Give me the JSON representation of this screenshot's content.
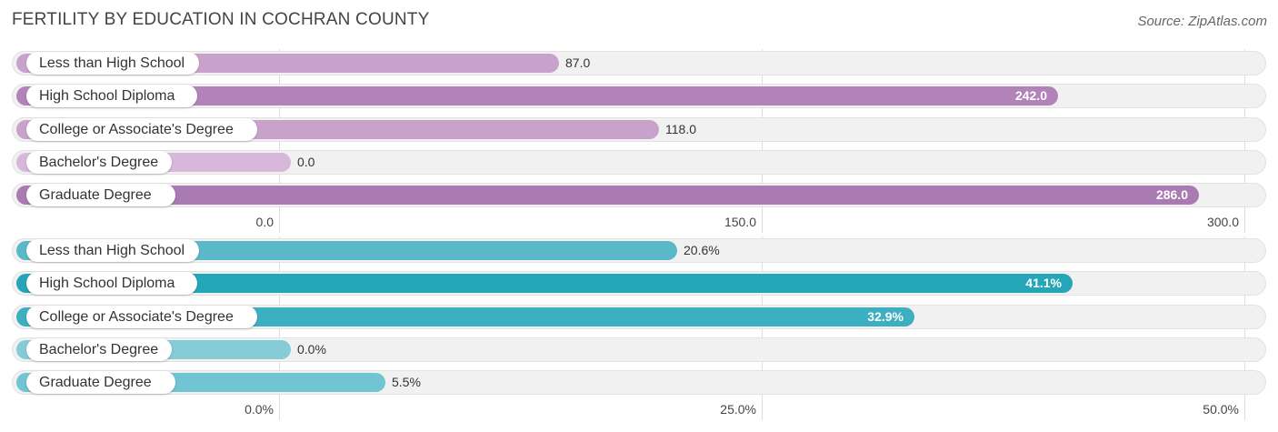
{
  "header": {
    "title": "FERTILITY BY EDUCATION IN COCHRAN COUNTY",
    "source": "Source: ZipAtlas.com"
  },
  "chart_data": [
    {
      "type": "bar",
      "orientation": "horizontal",
      "categories": [
        "Less than High School",
        "High School Diploma",
        "College or Associate's Degree",
        "Bachelor's Degree",
        "Graduate Degree"
      ],
      "values": [
        87.0,
        242.0,
        118.0,
        0.0,
        286.0
      ],
      "value_labels": [
        "87.0",
        "242.0",
        "118.0",
        "0.0",
        "286.0"
      ],
      "xlim": [
        0,
        300
      ],
      "ticks": [
        0,
        150,
        300
      ],
      "tick_labels": [
        "0.0",
        "150.0",
        "300.0"
      ],
      "colors": [
        "#c9a2cc",
        "#b283b9",
        "#c9a2cc",
        "#d7b8da",
        "#aa7bb2"
      ],
      "grid": true
    },
    {
      "type": "bar",
      "orientation": "horizontal",
      "categories": [
        "Less than High School",
        "High School Diploma",
        "College or Associate's Degree",
        "Bachelor's Degree",
        "Graduate Degree"
      ],
      "values": [
        20.6,
        41.1,
        32.9,
        0.0,
        5.5
      ],
      "value_labels": [
        "20.6%",
        "41.1%",
        "32.9%",
        "0.0%",
        "5.5%"
      ],
      "xlim": [
        0,
        50
      ],
      "ticks": [
        0,
        25,
        50
      ],
      "tick_labels": [
        "0.0%",
        "25.0%",
        "50.0%"
      ],
      "colors": [
        "#5ab8c9",
        "#25a5b8",
        "#3cafc1",
        "#86ccd7",
        "#71c4d1"
      ],
      "grid": true
    }
  ]
}
